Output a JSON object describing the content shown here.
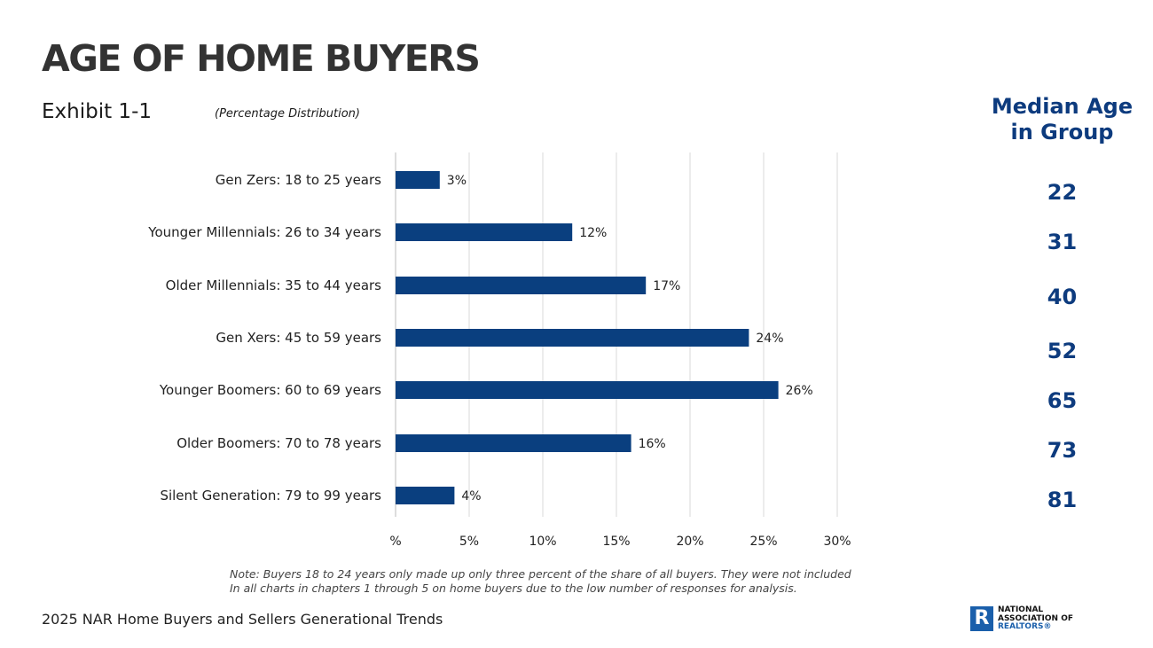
{
  "title": "AGE OF HOME BUYERS",
  "exhibit": "Exhibit 1-1",
  "subtitle": "(Percentage Distribution)",
  "median_header_line1": "Median Age",
  "median_header_line2": "in Group",
  "median_ages": [
    "22",
    "31",
    "40",
    "52",
    "65",
    "73",
    "81"
  ],
  "note_line1": "Note: Buyers 18 to 24 years only made up only three percent of the share of all buyers. They were not included",
  "note_line2": "In all charts in chapters 1 through 5 on home buyers due to the low number of responses for analysis.",
  "footer": "2025 NAR Home Buyers and Sellers Generational Trends",
  "logo": {
    "line1": "NATIONAL",
    "line2": "ASSOCIATION OF",
    "line3": "REALTORS®",
    "letter": "R"
  },
  "colors": {
    "bar": "#0a3f7f",
    "accent": "#0d3b7e",
    "grid": "#d9d9d9"
  },
  "chart_data": {
    "type": "bar",
    "orientation": "horizontal",
    "categories": [
      "Gen Zers: 18 to 25 years",
      "Younger Millennials: 26 to 34 years",
      "Older Millennials: 35 to 44 years",
      "Gen Xers: 45 to 59 years",
      "Younger Boomers: 60 to 69 years",
      "Older Boomers: 70 to 78 years",
      "Silent Generation: 79 to 99 years"
    ],
    "values": [
      3,
      12,
      17,
      24,
      26,
      16,
      4
    ],
    "data_labels": [
      "3%",
      "12%",
      "17%",
      "24%",
      "26%",
      "16%",
      "4%"
    ],
    "xlim": [
      0,
      30
    ],
    "xticks": [
      0,
      5,
      10,
      15,
      20,
      25,
      30
    ],
    "xtick_labels": [
      "%",
      "5%",
      "10%",
      "15%",
      "20%",
      "25%",
      "30%"
    ],
    "grid": "vertical"
  }
}
